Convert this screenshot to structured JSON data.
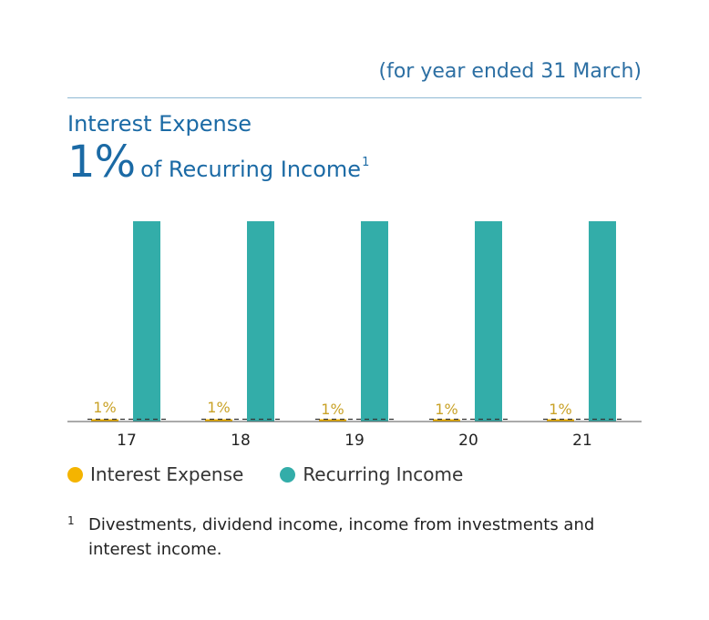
{
  "header": {
    "period_note": "(for year ended 31 March)",
    "title": "Interest Expense",
    "headline_value": "1%",
    "headline_text": "of Recurring Income",
    "headline_footnote_mark": "1"
  },
  "colors": {
    "interest_expense": "#f4b400",
    "recurring_income": "#33ada9",
    "label": "#c9a227",
    "axis": "#222222"
  },
  "chart_data": {
    "type": "bar",
    "categories": [
      "17",
      "18",
      "19",
      "20",
      "21"
    ],
    "series": [
      {
        "name": "Interest Expense",
        "values": [
          1,
          1,
          1,
          1,
          1
        ],
        "labels": [
          "1%",
          "1%",
          "1%",
          "1%",
          "1%"
        ]
      },
      {
        "name": "Recurring Income",
        "values": [
          100,
          100,
          100,
          100,
          100
        ]
      }
    ],
    "ylim": [
      0,
      100
    ],
    "xlabel": "",
    "ylabel": "",
    "grid": false,
    "legend_position": "bottom-left"
  },
  "legend": [
    {
      "label": "Interest Expense",
      "color": "#f4b400"
    },
    {
      "label": "Recurring Income",
      "color": "#33ada9"
    }
  ],
  "footnote": {
    "number": "1",
    "text": "Divestments, dividend income, income from investments and interest income."
  }
}
